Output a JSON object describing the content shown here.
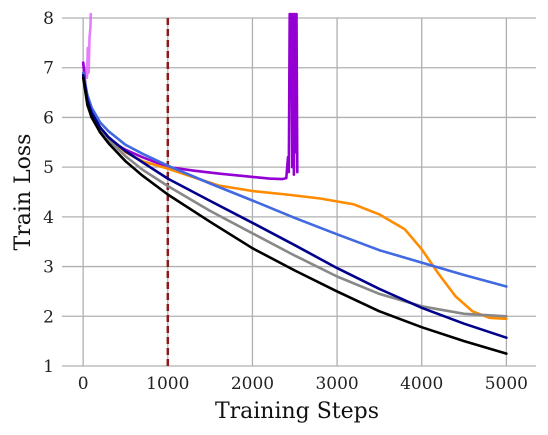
{
  "chart_data": {
    "type": "line",
    "xlabel": "Training Steps",
    "ylabel": "Train Loss",
    "xlim": [
      -250,
      5350
    ],
    "ylim": [
      1,
      8
    ],
    "xticks": [
      0,
      1000,
      2000,
      3000,
      4000,
      5000
    ],
    "yticks": [
      1,
      2,
      3,
      4,
      5,
      6,
      7,
      8
    ],
    "grid": true,
    "vline": {
      "x": 1000,
      "color": "#8b1a1a",
      "style": "dashed"
    },
    "series": [
      {
        "color": "#e066ff",
        "opacity": 0.85,
        "x": [
          0,
          15,
          30,
          45,
          55,
          65,
          75,
          85,
          90
        ],
        "y": [
          7.1,
          6.9,
          7.0,
          6.8,
          7.4,
          6.9,
          7.6,
          7.8,
          8.2
        ]
      },
      {
        "color": "#9400d3",
        "x": [
          0,
          30,
          60,
          100,
          150,
          200,
          300,
          400,
          500,
          700,
          1000,
          1300,
          1600,
          1900,
          2200,
          2350,
          2400,
          2420,
          2430,
          2440,
          2450,
          2460,
          2470,
          2480,
          2490,
          2500,
          2510,
          2520,
          2530
        ],
        "y": [
          7.1,
          6.6,
          6.3,
          6.1,
          5.95,
          5.8,
          5.6,
          5.45,
          5.35,
          5.2,
          5.0,
          4.93,
          4.87,
          4.82,
          4.77,
          4.76,
          4.78,
          5.2,
          4.9,
          8.2,
          6.5,
          8.2,
          5.0,
          8.2,
          4.85,
          8.2,
          5.3,
          8.2,
          4.9
        ]
      },
      {
        "color": "#ff8c00",
        "x": [
          0,
          50,
          100,
          200,
          300,
          500,
          700,
          1000,
          1300,
          1600,
          2000,
          2400,
          2800,
          3200,
          3500,
          3800,
          4000,
          4200,
          4400,
          4600,
          4800,
          5000
        ],
        "y": [
          6.9,
          6.4,
          6.1,
          5.8,
          5.6,
          5.3,
          5.12,
          4.97,
          4.8,
          4.63,
          4.52,
          4.45,
          4.37,
          4.25,
          4.05,
          3.75,
          3.35,
          2.85,
          2.4,
          2.1,
          1.97,
          1.95
        ]
      },
      {
        "color": "#4169e1",
        "x": [
          0,
          50,
          100,
          200,
          300,
          500,
          700,
          1000,
          1500,
          2000,
          2500,
          3000,
          3500,
          4000,
          4500,
          5000
        ],
        "y": [
          6.9,
          6.45,
          6.2,
          5.9,
          5.72,
          5.45,
          5.27,
          5.03,
          4.67,
          4.33,
          3.98,
          3.65,
          3.33,
          3.08,
          2.83,
          2.6
        ]
      },
      {
        "color": "#888888",
        "x": [
          0,
          50,
          100,
          200,
          300,
          500,
          700,
          1000,
          1500,
          2000,
          2500,
          3000,
          3500,
          4000,
          4500,
          5000
        ],
        "y": [
          6.8,
          6.3,
          6.05,
          5.75,
          5.55,
          5.22,
          4.95,
          4.62,
          4.12,
          3.67,
          3.22,
          2.8,
          2.45,
          2.2,
          2.05,
          2.0
        ]
      },
      {
        "color": "#00008b",
        "x": [
          0,
          50,
          100,
          200,
          300,
          500,
          700,
          1000,
          1500,
          2000,
          2500,
          3000,
          3500,
          4000,
          4500,
          5000
        ],
        "y": [
          6.85,
          6.35,
          6.1,
          5.8,
          5.6,
          5.32,
          5.1,
          4.77,
          4.32,
          3.88,
          3.43,
          2.97,
          2.55,
          2.17,
          1.85,
          1.57
        ]
      },
      {
        "color": "#000000",
        "x": [
          0,
          50,
          100,
          200,
          300,
          500,
          700,
          1000,
          1500,
          2000,
          2500,
          3000,
          3500,
          4000,
          4500,
          5000
        ],
        "y": [
          6.8,
          6.25,
          6.0,
          5.7,
          5.48,
          5.12,
          4.83,
          4.45,
          3.9,
          3.37,
          2.92,
          2.5,
          2.1,
          1.78,
          1.5,
          1.25
        ]
      }
    ]
  }
}
